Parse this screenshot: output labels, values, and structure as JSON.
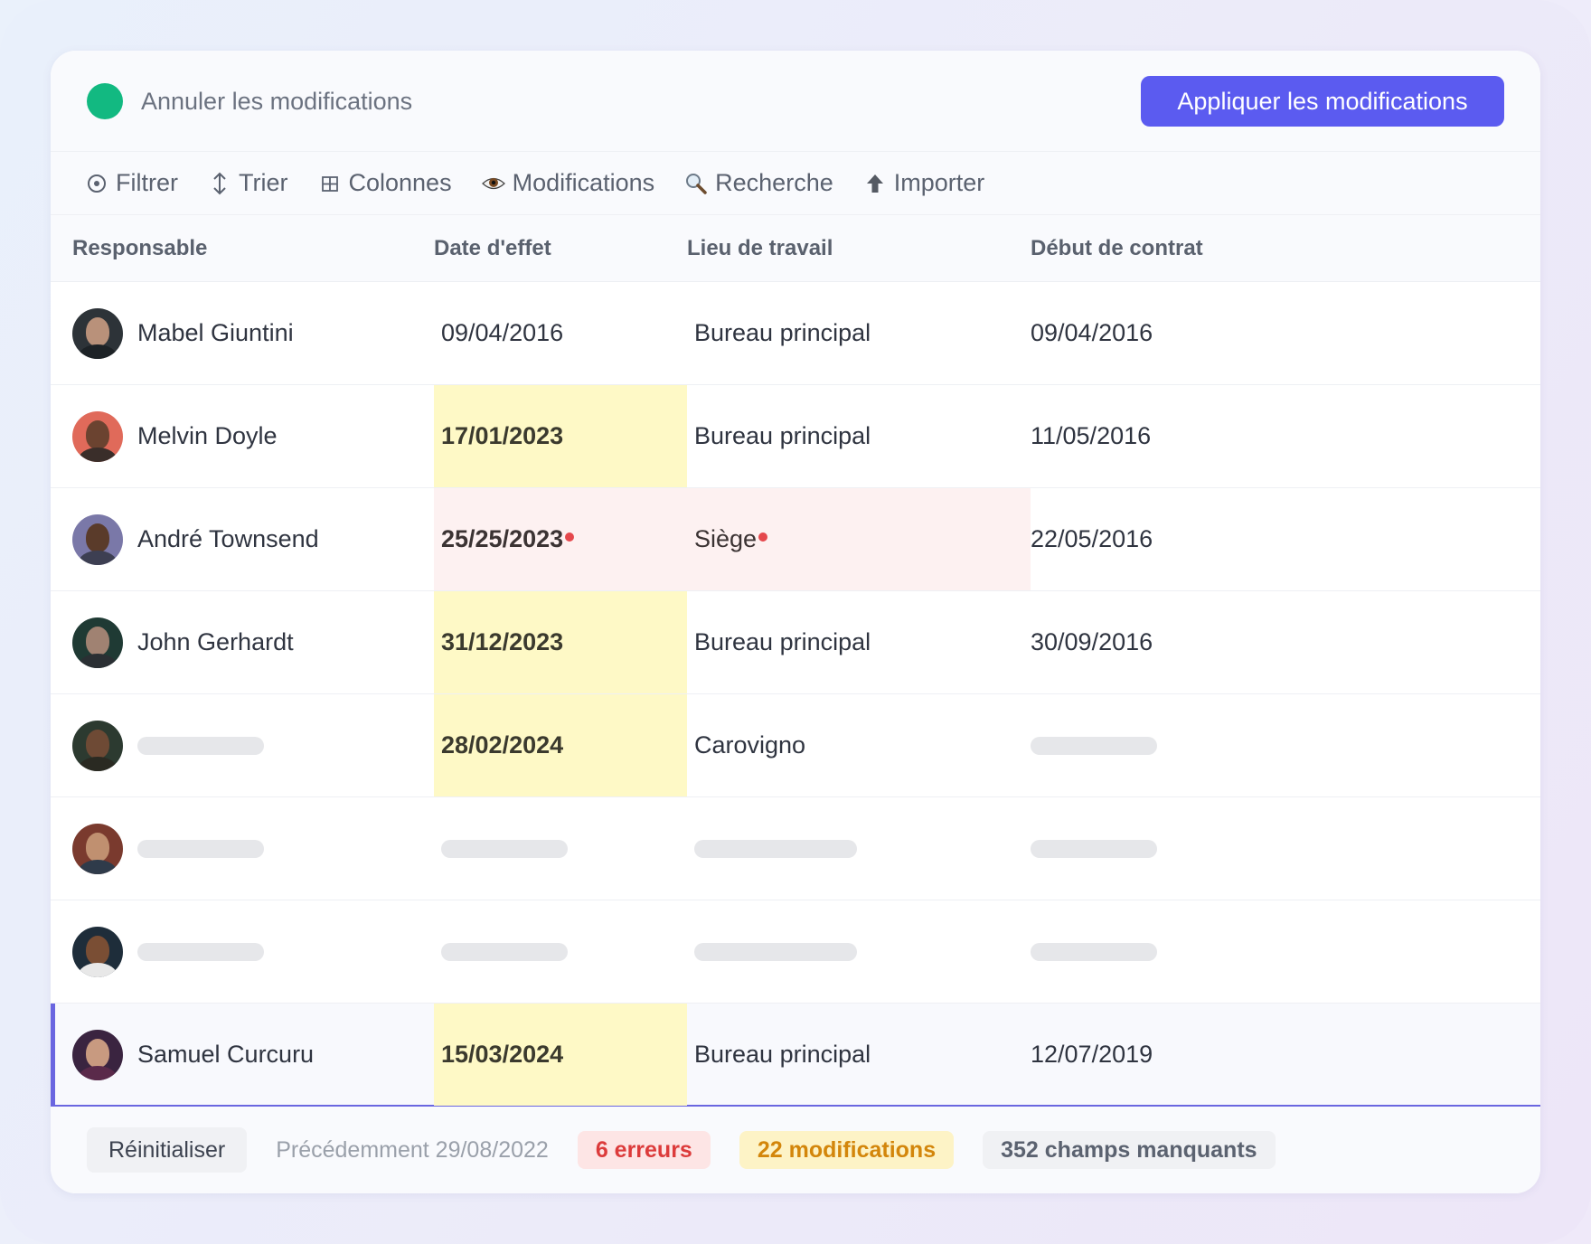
{
  "header": {
    "cancel_label": "Annuler les modifications",
    "apply_label": "Appliquer les modifications",
    "status_color": "#12b981",
    "accent": "#5b5bf0"
  },
  "toolbar": [
    {
      "label": "Filtrer",
      "icon": "filter-icon"
    },
    {
      "label": "Trier",
      "icon": "sort-icon"
    },
    {
      "label": "Colonnes",
      "icon": "columns-icon"
    },
    {
      "label": "Modifications",
      "icon": "eye-icon"
    },
    {
      "label": "Recherche",
      "icon": "search-icon"
    },
    {
      "label": "Importer",
      "icon": "upload-icon"
    }
  ],
  "columns": {
    "responsable": "Responsable",
    "date_effet": "Date d'effet",
    "lieu": "Lieu de travail",
    "debut": "Début de contrat"
  },
  "rows": [
    {
      "name": "Mabel Giuntini",
      "date": "09/04/2016",
      "lieu": "Bureau principal",
      "debut": "09/04/2016",
      "date_state": "normal",
      "lieu_state": "normal"
    },
    {
      "name": "Melvin Doyle",
      "date": "17/01/2023",
      "lieu": "Bureau principal",
      "debut": "11/05/2016",
      "date_state": "modified",
      "lieu_state": "normal"
    },
    {
      "name": "André Townsend",
      "date": "25/25/2023",
      "lieu": "Siège",
      "debut": "22/05/2016",
      "date_state": "error",
      "lieu_state": "error"
    },
    {
      "name": "John Gerhardt",
      "date": "31/12/2023",
      "lieu": "Bureau principal",
      "debut": "30/09/2016",
      "date_state": "modified",
      "lieu_state": "normal"
    },
    {
      "name": "",
      "date": "28/02/2024",
      "lieu": "Carovigno",
      "debut": "",
      "date_state": "modified",
      "lieu_state": "normal"
    },
    {
      "name": "",
      "date": "",
      "lieu": "",
      "debut": "",
      "date_state": "loading",
      "lieu_state": "loading"
    },
    {
      "name": "",
      "date": "",
      "lieu": "",
      "debut": "",
      "date_state": "loading",
      "lieu_state": "loading"
    },
    {
      "name": "Samuel Curcuru",
      "date": "15/03/2024",
      "lieu": "Bureau principal",
      "debut": "12/07/2019",
      "date_state": "modified",
      "lieu_state": "normal"
    }
  ],
  "footer": {
    "reset_label": "Réinitialiser",
    "previous_label": "Précédemment 29/08/2022",
    "errors_label": "6 erreurs",
    "modifications_label": "22 modifications",
    "missing_label": "352 champs manquants"
  }
}
